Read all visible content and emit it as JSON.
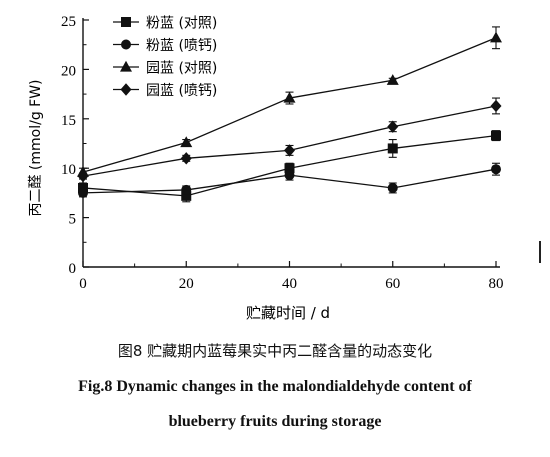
{
  "chart_data": {
    "type": "line",
    "xlabel": "贮藏时间 / d",
    "ylabel": "丙二醛 (mmol/g FW)",
    "x": [
      0,
      20,
      40,
      60,
      80
    ],
    "xticks": [
      "0",
      "20",
      "40",
      "60",
      "80"
    ],
    "yticks": [
      "0",
      "5",
      "10",
      "15",
      "20",
      "25"
    ],
    "xlim": [
      0,
      80
    ],
    "ylim": [
      0,
      25
    ],
    "grid": false,
    "legend_position": "top-left",
    "series": [
      {
        "name": "粉蓝 (对照)",
        "marker": "square",
        "values": [
          8.0,
          7.2,
          10.0,
          12.0,
          13.3
        ],
        "errors": [
          0.5,
          0.6,
          0.5,
          0.9,
          0.5
        ]
      },
      {
        "name": "粉蓝 (喷钙)",
        "marker": "circle",
        "values": [
          7.5,
          7.8,
          9.3,
          8.0,
          9.9
        ],
        "errors": [
          0.4,
          0.4,
          0.5,
          0.5,
          0.6
        ]
      },
      {
        "name": "园蓝 (对照)",
        "marker": "triangle",
        "values": [
          9.6,
          12.6,
          17.1,
          18.9,
          23.2
        ],
        "errors": [
          0.4,
          0.3,
          0.6,
          0.2,
          1.1
        ]
      },
      {
        "name": "园蓝 (喷钙)",
        "marker": "diamond",
        "values": [
          9.2,
          11.0,
          11.8,
          14.2,
          16.3
        ],
        "errors": [
          0.3,
          0.3,
          0.5,
          0.5,
          0.8
        ]
      }
    ]
  },
  "caption": {
    "cn": "图8 贮藏期内蓝莓果实中丙二醛含量的动态变化",
    "en_line1": "Fig.8 Dynamic changes in the malondialdehyde content of",
    "en_line2": "blueberry fruits during storage"
  }
}
